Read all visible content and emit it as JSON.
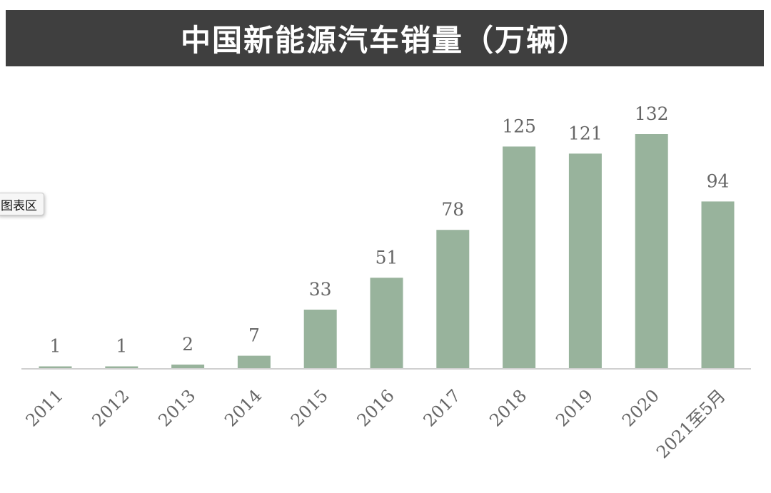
{
  "title": "中国新能源汽车销量（万辆）",
  "tooltip_label": "图表区",
  "colors": {
    "bar": "#98b39c",
    "title_bg": "#3f3f3f",
    "title_text": "#ffffff",
    "label_text": "#666666",
    "axis": "#d0d0d0"
  },
  "chart_data": {
    "type": "bar",
    "title": "中国新能源汽车销量（万辆）",
    "categories": [
      "2011",
      "2012",
      "2013",
      "2014",
      "2015",
      "2016",
      "2017",
      "2018",
      "2019",
      "2020",
      "2021至5月"
    ],
    "values": [
      1,
      1,
      2,
      7,
      33,
      51,
      78,
      125,
      121,
      132,
      94
    ],
    "data_labels": [
      "1",
      "1",
      "2",
      "7",
      "33",
      "51",
      "78",
      "125",
      "121",
      "132",
      "94"
    ],
    "xlabel": "",
    "ylabel": "",
    "ylim": [
      0,
      132
    ],
    "grid": false,
    "legend": "none"
  }
}
